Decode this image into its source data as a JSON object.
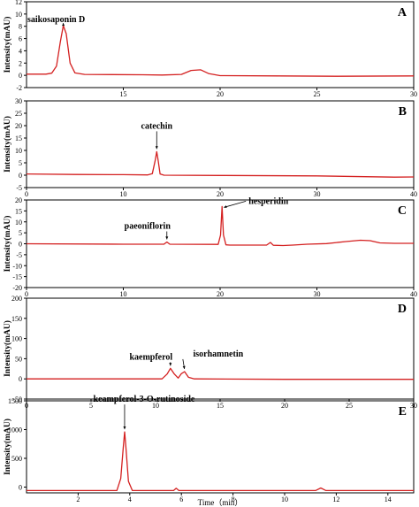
{
  "chart_data": [
    {
      "type": "line",
      "panel_label": "A",
      "ylabel": "Intensity(mAU)",
      "xlabel": "",
      "xlim": [
        10,
        30
      ],
      "ylim": [
        -2,
        12
      ],
      "xticks": [
        15,
        20,
        25,
        30
      ],
      "yticks": [
        -2,
        0,
        2,
        4,
        6,
        8,
        10,
        12
      ],
      "series": [
        {
          "values": [
            [
              10,
              0.2
            ],
            [
              11,
              0.2
            ],
            [
              11.3,
              0.35
            ],
            [
              11.55,
              1.5
            ],
            [
              11.75,
              5.5
            ],
            [
              11.9,
              8.1
            ],
            [
              12.05,
              6.8
            ],
            [
              12.25,
              2.0
            ],
            [
              12.5,
              0.4
            ],
            [
              13,
              0.15
            ],
            [
              16,
              0.1
            ],
            [
              17,
              0.05
            ],
            [
              18,
              0.15
            ],
            [
              18.5,
              0.8
            ],
            [
              19,
              0.9
            ],
            [
              19.4,
              0.3
            ],
            [
              20,
              -0.05
            ],
            [
              23,
              -0.1
            ],
            [
              26,
              -0.15
            ],
            [
              30,
              -0.1
            ]
          ]
        }
      ],
      "annotations": [
        {
          "text": "saikosaponin D",
          "x": 11.9,
          "y": 8.1
        }
      ]
    },
    {
      "type": "line",
      "panel_label": "B",
      "ylabel": "Intensity(mAU)",
      "xlabel": "",
      "xlim": [
        0,
        40
      ],
      "ylim": [
        -5,
        30
      ],
      "xticks": [
        0,
        10,
        20,
        30,
        40
      ],
      "yticks": [
        -5,
        0,
        5,
        10,
        15,
        20,
        25,
        30
      ],
      "series": [
        {
          "values": [
            [
              0,
              0.5
            ],
            [
              5,
              0.3
            ],
            [
              10,
              0.2
            ],
            [
              12.5,
              0.1
            ],
            [
              13,
              0.6
            ],
            [
              13.3,
              6
            ],
            [
              13.45,
              9.5
            ],
            [
              13.6,
              6
            ],
            [
              13.8,
              0.5
            ],
            [
              14.2,
              0
            ],
            [
              20,
              -0.1
            ],
            [
              30,
              -0.3
            ],
            [
              35,
              -0.6
            ],
            [
              38,
              -0.8
            ],
            [
              40,
              -0.7
            ]
          ]
        }
      ],
      "annotations": [
        {
          "text": "catechin",
          "x": 13.45,
          "y": 9.5
        }
      ]
    },
    {
      "type": "line",
      "panel_label": "C",
      "ylabel": "Intensity(mAU)",
      "xlabel": "",
      "xlim": [
        0,
        40
      ],
      "ylim": [
        -20,
        20
      ],
      "xticks": [
        0,
        10,
        20,
        30,
        40
      ],
      "yticks": [
        -20,
        -15,
        -10,
        -5,
        0,
        5,
        10,
        15,
        20
      ],
      "series": [
        {
          "values": [
            [
              0,
              0
            ],
            [
              10,
              -0.2
            ],
            [
              14.2,
              -0.2
            ],
            [
              14.5,
              0.8
            ],
            [
              14.8,
              -0.2
            ],
            [
              19.8,
              -0.3
            ],
            [
              20.05,
              4
            ],
            [
              20.2,
              17
            ],
            [
              20.35,
              4
            ],
            [
              20.6,
              -0.5
            ],
            [
              21,
              -0.6
            ],
            [
              24.8,
              -0.6
            ],
            [
              25.2,
              0.6
            ],
            [
              25.5,
              -0.7
            ],
            [
              26.5,
              -0.8
            ],
            [
              27.5,
              -0.6
            ],
            [
              29,
              -0.2
            ],
            [
              31,
              0.1
            ],
            [
              33,
              1.0
            ],
            [
              34.5,
              1.6
            ],
            [
              35.5,
              1.4
            ],
            [
              36.5,
              0.4
            ],
            [
              38,
              0.2
            ],
            [
              40,
              0.2
            ]
          ]
        }
      ],
      "annotations": [
        {
          "text": "paeoniflorin",
          "x": 14.5,
          "y": 0.8
        },
        {
          "text": "hesperidin",
          "x": 20.2,
          "y": 17
        }
      ]
    },
    {
      "type": "line",
      "panel_label": "D",
      "ylabel": "Intensity(mAU)",
      "xlabel": "",
      "xlim": [
        0,
        30
      ],
      "ylim": [
        -50,
        200
      ],
      "xticks": [
        0,
        5,
        10,
        15,
        20,
        25,
        30
      ],
      "yticks": [
        -50,
        0,
        50,
        100,
        150,
        200
      ],
      "series": [
        {
          "values": [
            [
              0,
              0
            ],
            [
              10.5,
              0
            ],
            [
              10.9,
              12
            ],
            [
              11.15,
              26
            ],
            [
              11.45,
              12
            ],
            [
              11.75,
              2
            ],
            [
              12.0,
              13
            ],
            [
              12.25,
              18
            ],
            [
              12.55,
              4
            ],
            [
              13,
              0
            ],
            [
              20,
              -1
            ],
            [
              30,
              -1
            ]
          ]
        }
      ],
      "annotations": [
        {
          "text": "kaempferol",
          "x": 11.15,
          "y": 26
        },
        {
          "text": "isorhamnetin",
          "x": 12.25,
          "y": 18
        }
      ]
    },
    {
      "type": "line",
      "panel_label": "E",
      "ylabel": "Intensity(mAU)",
      "xlabel": "Time（min）",
      "xlim": [
        0,
        15
      ],
      "ylim": [
        -100,
        1500
      ],
      "xticks": [
        2,
        4,
        6,
        8,
        10,
        12,
        14
      ],
      "yticks": [
        0,
        500,
        1000,
        1500
      ],
      "series": [
        {
          "values": [
            [
              0,
              -60
            ],
            [
              3.5,
              -60
            ],
            [
              3.65,
              150
            ],
            [
              3.75,
              700
            ],
            [
              3.8,
              960
            ],
            [
              3.85,
              700
            ],
            [
              3.95,
              100
            ],
            [
              4.1,
              -60
            ],
            [
              5.7,
              -60
            ],
            [
              5.8,
              -20
            ],
            [
              5.9,
              -60
            ],
            [
              11.2,
              -60
            ],
            [
              11.4,
              -15
            ],
            [
              11.6,
              -60
            ],
            [
              15,
              -60
            ]
          ]
        }
      ],
      "annotations": [
        {
          "text": "keampferol-3-O-rutinoside",
          "x": 3.8,
          "y": 960
        }
      ]
    }
  ],
  "colors": {
    "trace": "#d42020",
    "axis": "#000000"
  }
}
